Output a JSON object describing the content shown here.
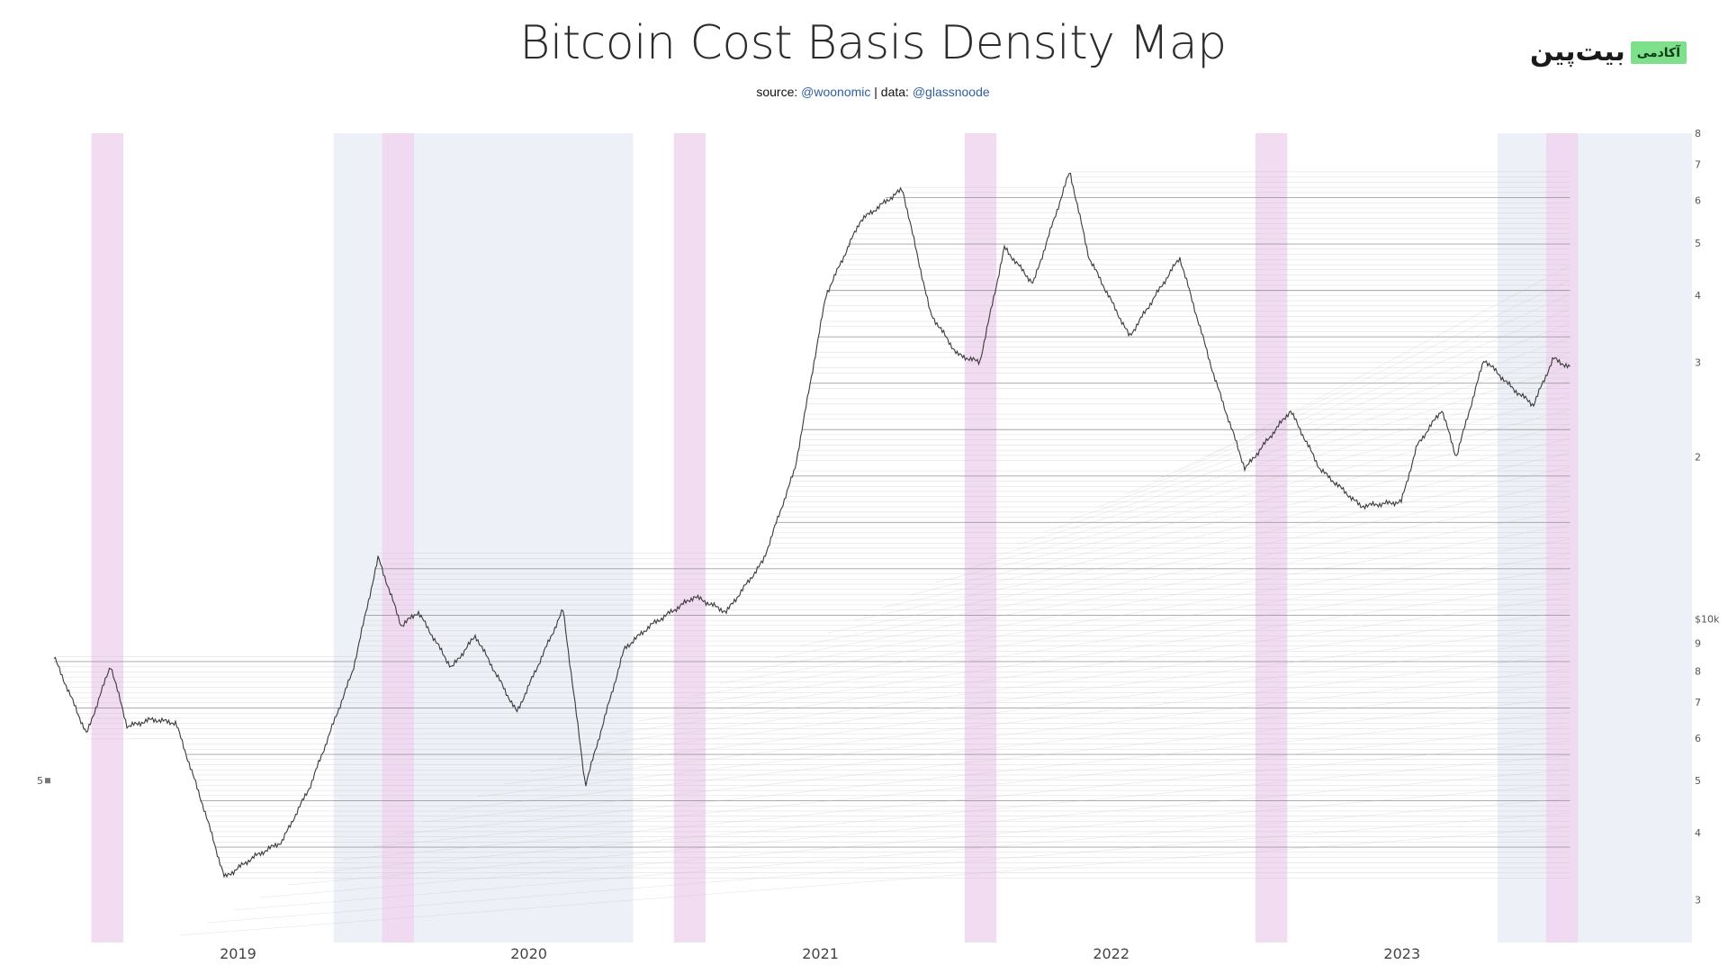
{
  "header": {
    "title": "Bitcoin Cost Basis Density Map",
    "source_prefix": "source: ",
    "source_handle": "@woonomic",
    "data_prefix": " | data: ",
    "data_handle": "@glassnoode"
  },
  "logo": {
    "word": "بیت‌پین",
    "badge": "آکادمی"
  },
  "colors": {
    "background": "#ffffff",
    "halving_band": "#eef0f7",
    "pink_band": "#f0d6f0",
    "price_line": "#3a3a3a",
    "cost_basis_lines": "#bdbdbd"
  },
  "chart_data": {
    "type": "line",
    "title": "Bitcoin Cost Basis Density Map",
    "y_scale": "log",
    "ylim": [
      2500,
      80000
    ],
    "xlim": [
      "2018-05-15",
      "2023-12-31"
    ],
    "x_tick_labels": [
      "2019",
      "2020",
      "2021",
      "2022",
      "2023"
    ],
    "y_tick_labels_right": [
      "8",
      "7",
      "6",
      "5",
      "4",
      "3",
      "2",
      "$10k",
      "9",
      "8",
      "7",
      "6",
      "5",
      "4",
      "3"
    ],
    "y_tick_label_left": "5",
    "shaded_periods": [
      {
        "start": "2019-05-01",
        "end": "2020-05-11"
      },
      {
        "start": "2023-05-01",
        "end": "2023-12-31"
      }
    ],
    "highlight_periods": [
      {
        "start": "2018-07-01",
        "end": "2018-08-10"
      },
      {
        "start": "2019-07-01",
        "end": "2019-08-10"
      },
      {
        "start": "2020-07-01",
        "end": "2020-08-10"
      },
      {
        "start": "2021-07-01",
        "end": "2021-08-10"
      },
      {
        "start": "2022-07-01",
        "end": "2022-08-10"
      },
      {
        "start": "2023-07-01",
        "end": "2023-08-10"
      }
    ],
    "series": [
      {
        "values": [
          [
            "2018-05-15",
            8500
          ],
          [
            "2018-06-25",
            6100
          ],
          [
            "2018-07-25",
            8200
          ],
          [
            "2018-08-15",
            6300
          ],
          [
            "2018-09-15",
            6500
          ],
          [
            "2018-10-15",
            6400
          ],
          [
            "2018-11-20",
            4400
          ],
          [
            "2018-12-15",
            3300
          ],
          [
            "2019-01-20",
            3600
          ],
          [
            "2019-02-25",
            3850
          ],
          [
            "2019-04-02",
            4900
          ],
          [
            "2019-05-25",
            8000
          ],
          [
            "2019-06-26",
            13000
          ],
          [
            "2019-07-25",
            9700
          ],
          [
            "2019-08-15",
            10300
          ],
          [
            "2019-09-26",
            8100
          ],
          [
            "2019-10-26",
            9300
          ],
          [
            "2019-12-17",
            6700
          ],
          [
            "2020-02-13",
            10400
          ],
          [
            "2020-03-12",
            4900
          ],
          [
            "2020-04-30",
            8800
          ],
          [
            "2020-06-01",
            9700
          ],
          [
            "2020-07-27",
            11000
          ],
          [
            "2020-09-05",
            10300
          ],
          [
            "2020-10-21",
            12800
          ],
          [
            "2020-11-30",
            19000
          ],
          [
            "2021-01-08",
            40000
          ],
          [
            "2021-02-20",
            55000
          ],
          [
            "2021-04-14",
            63000
          ],
          [
            "2021-05-19",
            37000
          ],
          [
            "2021-06-22",
            31000
          ],
          [
            "2021-07-20",
            30000
          ],
          [
            "2021-08-20",
            49000
          ],
          [
            "2021-09-25",
            42000
          ],
          [
            "2021-11-10",
            68000
          ],
          [
            "2021-12-04",
            47000
          ],
          [
            "2022-01-24",
            33500
          ],
          [
            "2022-03-28",
            47000
          ],
          [
            "2022-05-11",
            28000
          ],
          [
            "2022-06-18",
            19000
          ],
          [
            "2022-08-14",
            24400
          ],
          [
            "2022-09-20",
            19000
          ],
          [
            "2022-11-10",
            16200
          ],
          [
            "2022-12-31",
            16500
          ],
          [
            "2023-01-20",
            21000
          ],
          [
            "2023-02-20",
            24500
          ],
          [
            "2023-03-10",
            20000
          ],
          [
            "2023-04-14",
            30400
          ],
          [
            "2023-05-20",
            26800
          ],
          [
            "2023-06-15",
            25000
          ],
          [
            "2023-07-10",
            30500
          ],
          [
            "2023-07-31",
            29300
          ]
        ]
      }
    ]
  }
}
